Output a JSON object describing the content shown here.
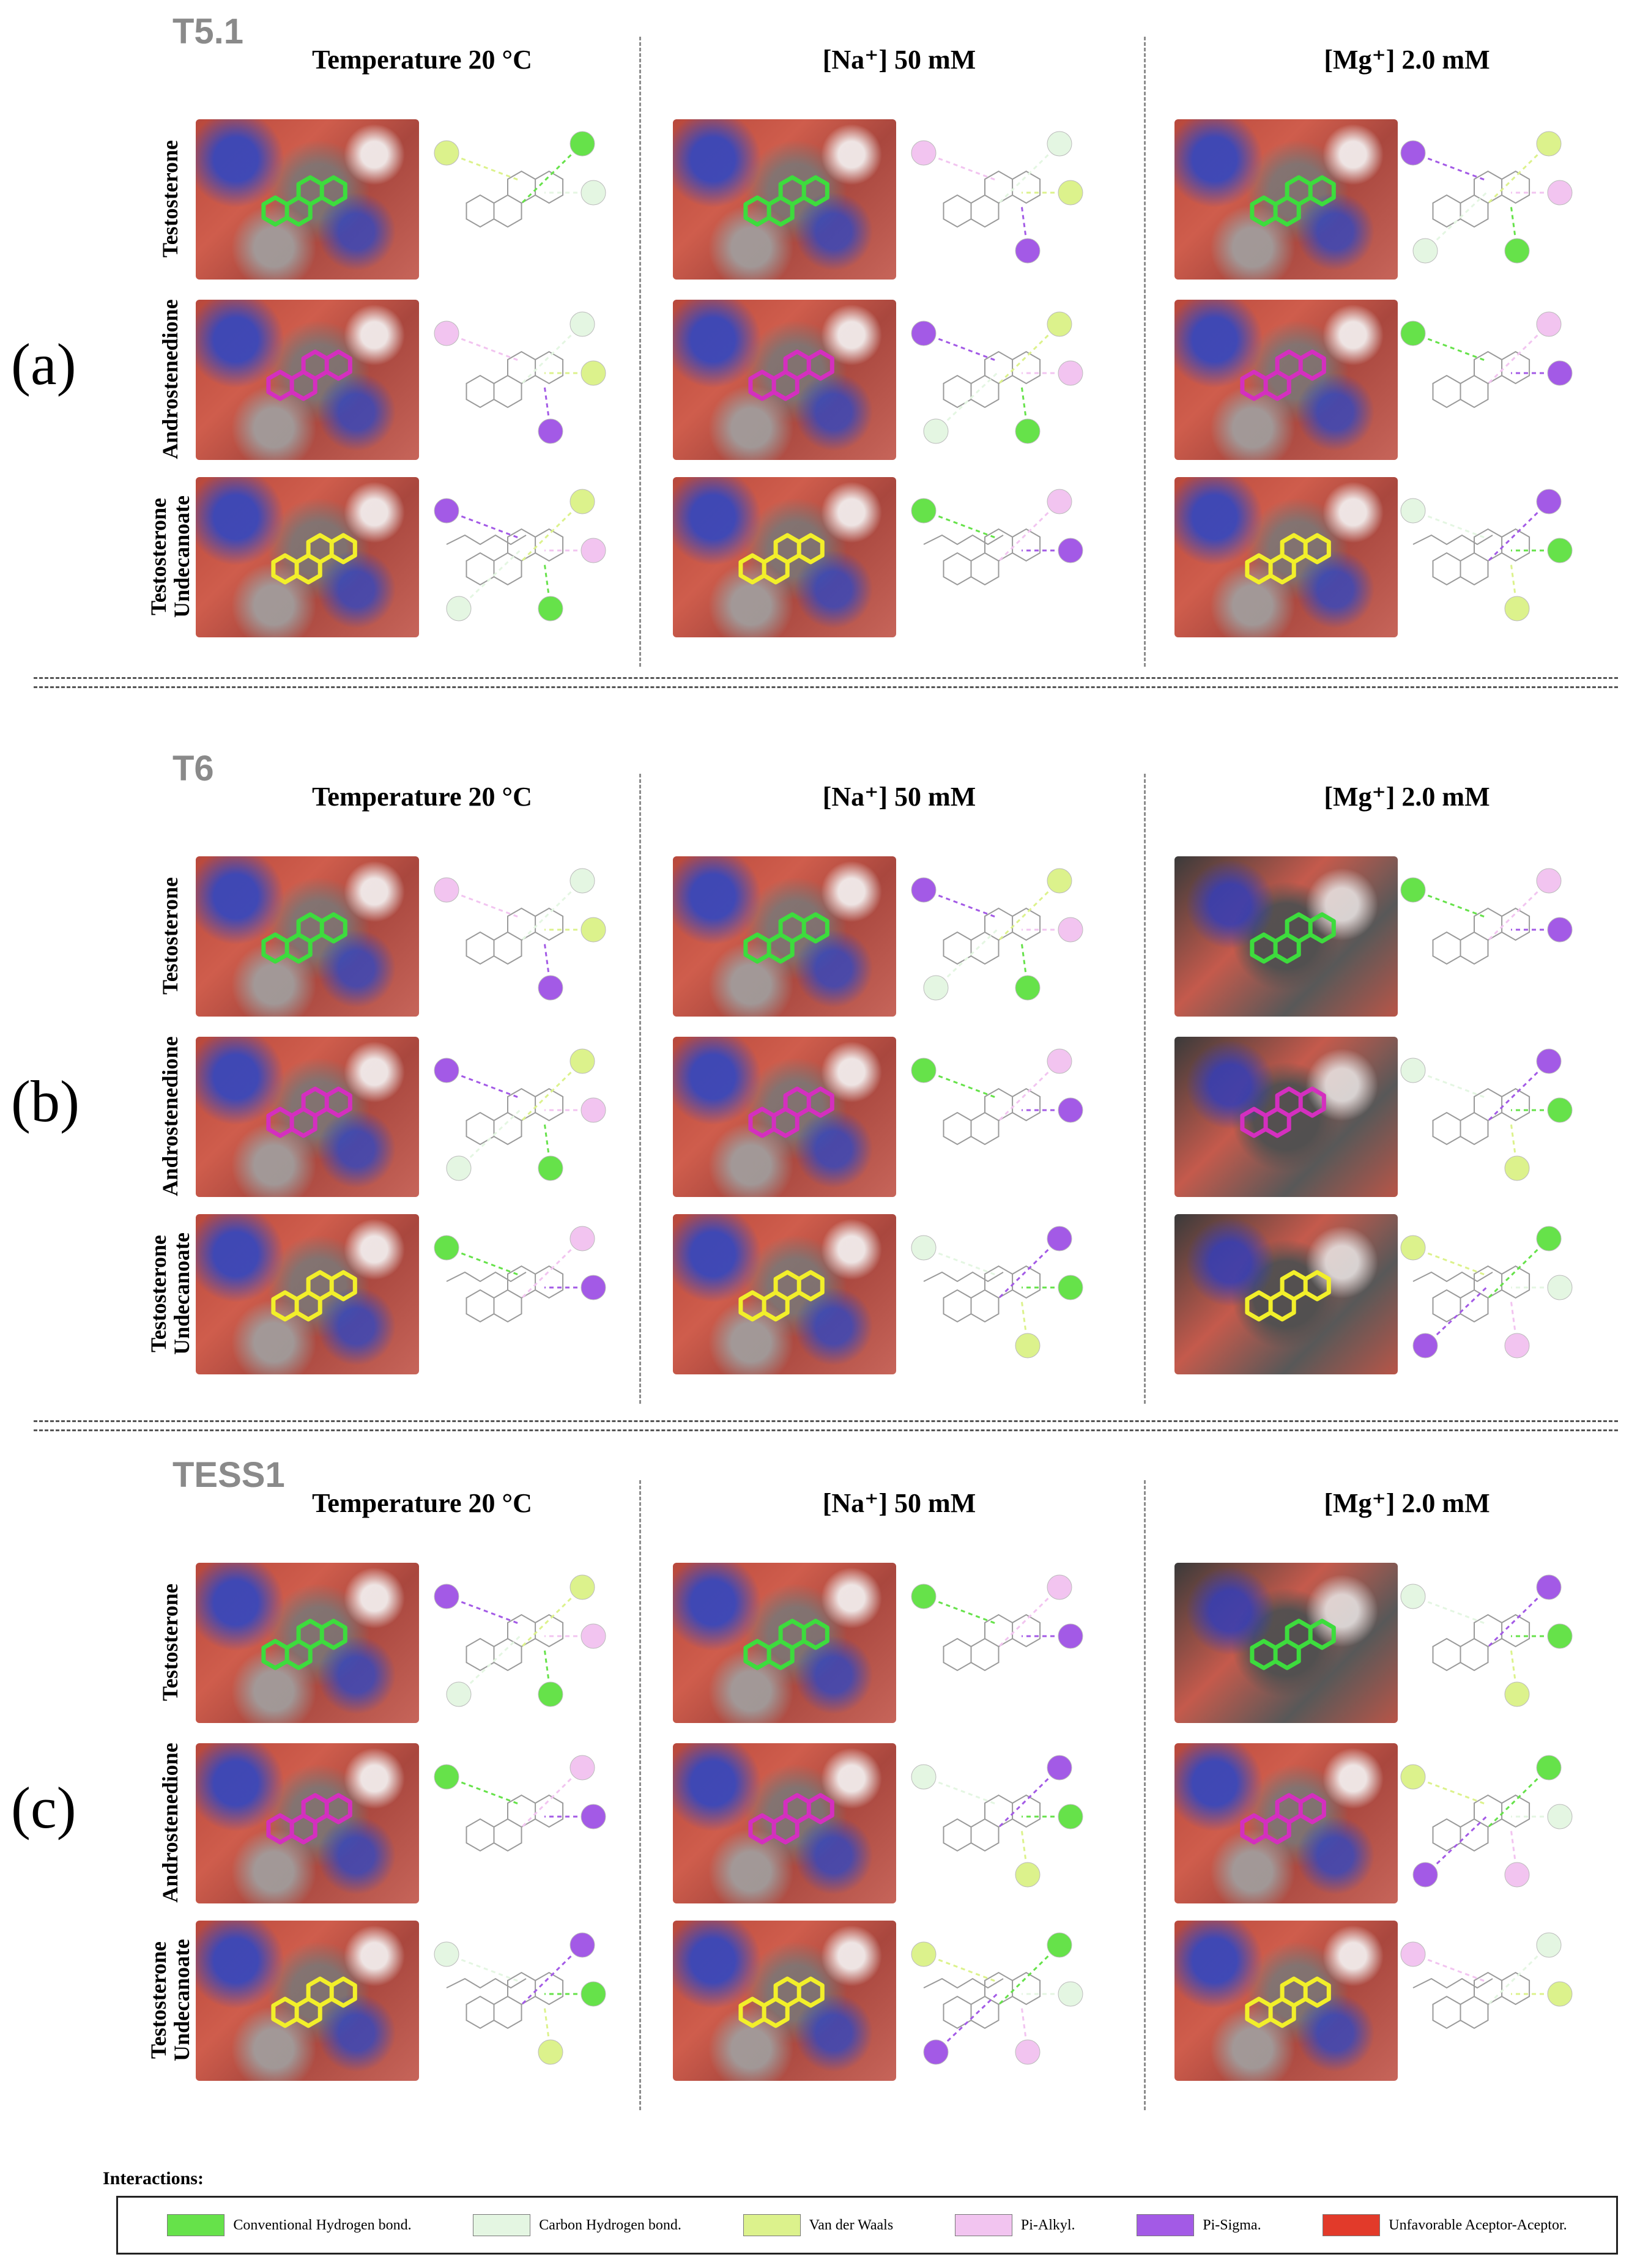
{
  "panels": [
    {
      "letter": "(a)",
      "title": "T5.1",
      "columns": [
        "Temperature 20 °C",
        "[Na⁺] 50 mM",
        "[Mg⁺] 2.0 mM"
      ],
      "rows": [
        "Testosterone",
        "Androstenedione",
        "Testosterone Undecanoate"
      ]
    },
    {
      "letter": "(b)",
      "title": "T6",
      "columns": [
        "Temperature 20 °C",
        "[Na⁺] 50 mM",
        "[Mg⁺] 2.0 mM"
      ],
      "rows": [
        "Testosterone",
        "Androstenedione",
        "Testosterone Undecanoate"
      ]
    },
    {
      "letter": "(c)",
      "title": "TESS1",
      "columns": [
        "Temperature 20 °C",
        "[Na⁺] 50 mM",
        "[Mg⁺] 2.0 mM"
      ],
      "rows": [
        "Testosterone",
        "Androstenedione",
        "Testosterone Undecanoate"
      ]
    }
  ],
  "ligand_colors": {
    "Testosterone": "#3ddc3d",
    "Androstenedione": "#d42fbf",
    "Testosterone Undecanoate": "#f2ef2a"
  },
  "legend": {
    "title": "Interactions:",
    "items": [
      {
        "label": "Conventional Hydrogen bond.",
        "color": "#66e24a"
      },
      {
        "label": "Carbon Hydrogen bond.",
        "color": "#e4f6e2"
      },
      {
        "label": "Van der Waals",
        "color": "#dcf28c"
      },
      {
        "label": "Pi-Alkyl.",
        "color": "#f2c4f0"
      },
      {
        "label": "Pi-Sigma.",
        "color": "#a35ae6"
      },
      {
        "label": "Unfavorable Aceptor-Aceptor.",
        "color": "#e23a2a"
      }
    ]
  }
}
